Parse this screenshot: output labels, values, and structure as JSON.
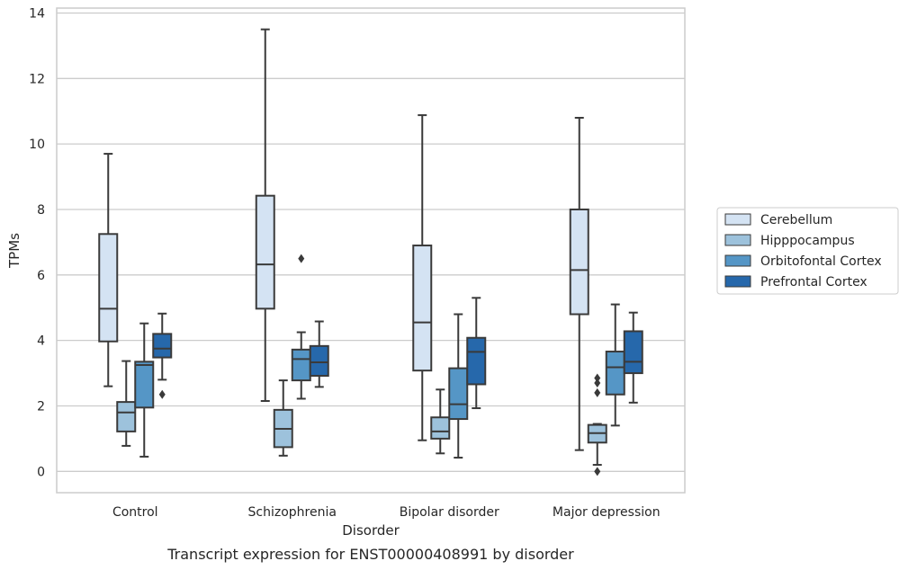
{
  "chart_data": {
    "type": "boxplot",
    "title": "",
    "caption": "Transcript expression for ENST00000408991 by disorder",
    "xlabel": "Disorder",
    "ylabel": "TPMs",
    "ylim": [
      -0.65,
      14.15
    ],
    "yticks": [
      0,
      2,
      4,
      6,
      8,
      10,
      12,
      14
    ],
    "grid": "horizontal",
    "legend_position": "right",
    "categories": [
      "Control",
      "Schizophrenia",
      "Bipolar disorder",
      "Major depression"
    ],
    "series": [
      {
        "name": "Cerebellum",
        "color": "#d4e3f3",
        "boxes": [
          {
            "whisker_low": 2.6,
            "q1": 3.97,
            "median": 4.97,
            "q3": 7.25,
            "whisker_high": 9.7,
            "outliers": []
          },
          {
            "whisker_low": 2.15,
            "q1": 4.97,
            "median": 6.32,
            "q3": 8.42,
            "whisker_high": 13.5,
            "outliers": []
          },
          {
            "whisker_low": 0.95,
            "q1": 3.08,
            "median": 4.55,
            "q3": 6.9,
            "whisker_high": 10.88,
            "outliers": []
          },
          {
            "whisker_low": 0.65,
            "q1": 4.8,
            "median": 6.15,
            "q3": 8.0,
            "whisker_high": 10.8,
            "outliers": []
          }
        ]
      },
      {
        "name": "Hipppocampus",
        "color": "#9dc2dc",
        "boxes": [
          {
            "whisker_low": 0.78,
            "q1": 1.22,
            "median": 1.8,
            "q3": 2.12,
            "whisker_high": 3.37,
            "outliers": []
          },
          {
            "whisker_low": 0.48,
            "q1": 0.74,
            "median": 1.3,
            "q3": 1.88,
            "whisker_high": 2.78,
            "outliers": []
          },
          {
            "whisker_low": 0.55,
            "q1": 1.0,
            "median": 1.22,
            "q3": 1.65,
            "whisker_high": 2.5,
            "outliers": []
          },
          {
            "whisker_low": 0.2,
            "q1": 0.88,
            "median": 1.17,
            "q3": 1.42,
            "whisker_high": 1.45,
            "outliers": [
              2.4,
              2.7,
              2.85,
              0.0
            ]
          }
        ]
      },
      {
        "name": "Orbitofontal Cortex",
        "color": "#5596c6",
        "boxes": [
          {
            "whisker_low": 0.45,
            "q1": 1.95,
            "median": 3.25,
            "q3": 3.35,
            "whisker_high": 4.52,
            "outliers": []
          },
          {
            "whisker_low": 2.22,
            "q1": 2.78,
            "median": 3.43,
            "q3": 3.72,
            "whisker_high": 4.25,
            "outliers": [
              6.5
            ]
          },
          {
            "whisker_low": 0.42,
            "q1": 1.6,
            "median": 2.05,
            "q3": 3.15,
            "whisker_high": 4.8,
            "outliers": []
          },
          {
            "whisker_low": 1.4,
            "q1": 2.35,
            "median": 3.18,
            "q3": 3.66,
            "whisker_high": 5.1,
            "outliers": []
          }
        ]
      },
      {
        "name": "Prefrontal Cortex",
        "color": "#2668ab",
        "boxes": [
          {
            "whisker_low": 2.8,
            "q1": 3.48,
            "median": 3.75,
            "q3": 4.2,
            "whisker_high": 4.82,
            "outliers": [
              2.35
            ]
          },
          {
            "whisker_low": 2.58,
            "q1": 2.92,
            "median": 3.33,
            "q3": 3.83,
            "whisker_high": 4.58,
            "outliers": []
          },
          {
            "whisker_low": 1.93,
            "q1": 2.66,
            "median": 3.65,
            "q3": 4.08,
            "whisker_high": 5.3,
            "outliers": []
          },
          {
            "whisker_low": 2.1,
            "q1": 3.0,
            "median": 3.35,
            "q3": 4.28,
            "whisker_high": 4.85,
            "outliers": []
          }
        ]
      }
    ]
  }
}
